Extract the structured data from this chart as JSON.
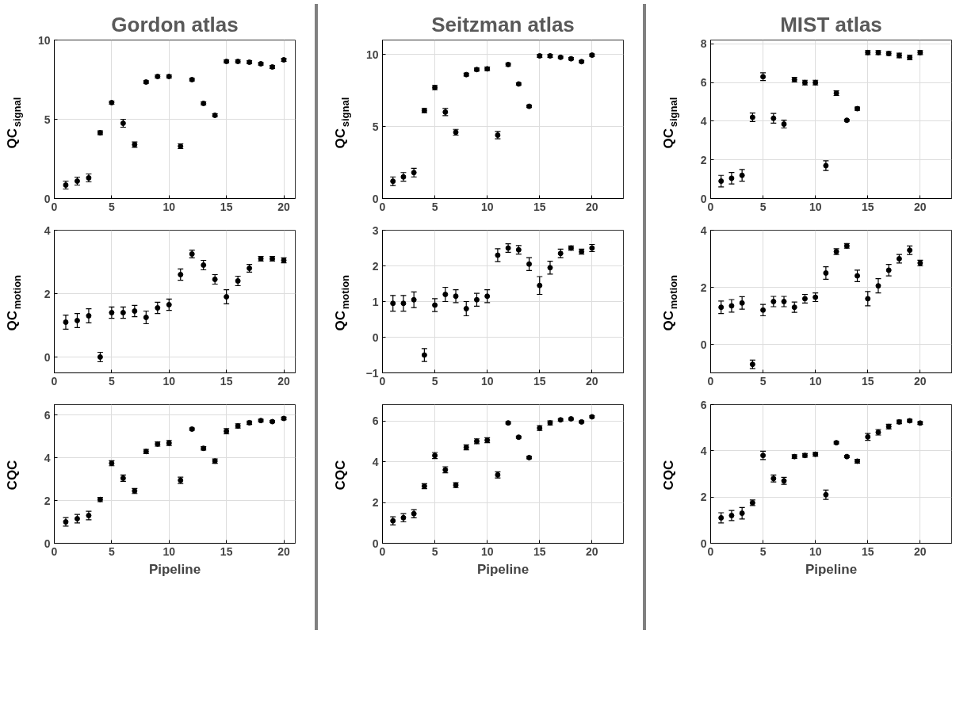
{
  "chart_data": [
    {
      "type": "scatter",
      "title": "Gordon atlas",
      "ylabel": "QC$_{signal}$",
      "x": [
        1,
        2,
        3,
        4,
        5,
        6,
        7,
        8,
        9,
        10,
        11,
        12,
        13,
        14,
        15,
        16,
        17,
        18,
        19,
        20
      ],
      "xlim": [
        0,
        21
      ],
      "xticks": [
        0,
        5,
        10,
        15,
        20
      ],
      "ylim": [
        0,
        10
      ],
      "yticks": [
        0,
        5,
        10
      ],
      "grid": true,
      "marker": "circle",
      "series": [
        {
          "color": "#000000",
          "values": [
            0.85,
            1.1,
            1.3,
            4.15,
            6.05,
            4.75,
            3.4,
            7.35,
            7.7,
            7.7,
            3.3,
            7.5,
            6.0,
            5.25,
            8.65,
            8.65,
            8.6,
            8.5,
            8.3,
            8.75
          ],
          "errors": [
            0.25,
            0.25,
            0.25,
            0.12,
            0.1,
            0.25,
            0.17,
            0.08,
            0.1,
            0.1,
            0.15,
            0.08,
            0.1,
            0.1,
            0.1,
            0.1,
            0.1,
            0.08,
            0.1,
            0.1
          ]
        }
      ]
    },
    {
      "type": "scatter",
      "title": "Seitzman atlas",
      "ylabel": "QC$_{signal}$",
      "x": [
        1,
        2,
        3,
        4,
        5,
        6,
        7,
        8,
        9,
        10,
        11,
        12,
        13,
        14,
        15,
        16,
        17,
        18,
        19,
        20
      ],
      "xlim": [
        0,
        23
      ],
      "xticks": [
        0,
        5,
        10,
        15,
        20
      ],
      "ylim": [
        0,
        11
      ],
      "yticks": [
        0,
        5,
        10
      ],
      "grid": true,
      "marker": "circle",
      "series": [
        {
          "color": "#000000",
          "values": [
            1.2,
            1.5,
            1.8,
            6.1,
            7.7,
            6.0,
            4.6,
            8.6,
            8.95,
            9.0,
            4.4,
            9.3,
            7.95,
            6.4,
            9.9,
            9.9,
            9.8,
            9.7,
            9.5,
            9.95
          ],
          "errors": [
            0.3,
            0.3,
            0.3,
            0.15,
            0.15,
            0.25,
            0.2,
            0.1,
            0.1,
            0.12,
            0.25,
            0.1,
            0.08,
            0.08,
            0.1,
            0.1,
            0.08,
            0.08,
            0.08,
            0.08
          ]
        }
      ]
    },
    {
      "type": "scatter",
      "title": "MIST atlas",
      "ylabel": "QC$_{signal}$",
      "x": [
        1,
        2,
        3,
        4,
        5,
        6,
        7,
        8,
        9,
        10,
        11,
        12,
        13,
        14,
        15,
        16,
        17,
        18,
        19,
        20
      ],
      "xlim": [
        0,
        23
      ],
      "xticks": [
        0,
        5,
        10,
        15,
        20
      ],
      "ylim": [
        0,
        8.2
      ],
      "yticks": [
        0,
        2,
        4,
        6,
        8
      ],
      "grid": true,
      "marker": "circle",
      "series": [
        {
          "color": "#000000",
          "values": [
            0.9,
            1.05,
            1.2,
            4.2,
            6.3,
            4.15,
            3.85,
            6.15,
            6.0,
            6.0,
            1.7,
            5.45,
            4.05,
            4.65,
            7.55,
            7.55,
            7.5,
            7.4,
            7.3,
            7.55
          ],
          "errors": [
            0.3,
            0.3,
            0.3,
            0.22,
            0.2,
            0.25,
            0.2,
            0.12,
            0.12,
            0.12,
            0.25,
            0.12,
            0.05,
            0.08,
            0.1,
            0.1,
            0.1,
            0.12,
            0.12,
            0.1
          ]
        }
      ]
    },
    {
      "type": "scatter",
      "ylabel": "QC$_{motion}$",
      "x": [
        1,
        2,
        3,
        4,
        5,
        6,
        7,
        8,
        9,
        10,
        11,
        12,
        13,
        14,
        15,
        16,
        17,
        18,
        19,
        20
      ],
      "xlim": [
        0,
        21
      ],
      "xticks": [
        0,
        5,
        10,
        15,
        20
      ],
      "ylim": [
        -0.5,
        4
      ],
      "yticks": [
        0,
        2,
        4
      ],
      "grid": true,
      "marker": "circle",
      "series": [
        {
          "color": "#000000",
          "values": [
            1.1,
            1.15,
            1.3,
            0.0,
            1.4,
            1.4,
            1.45,
            1.25,
            1.55,
            1.65,
            2.6,
            3.25,
            2.9,
            2.45,
            1.9,
            2.4,
            2.8,
            3.1,
            3.1,
            3.05
          ],
          "errors": [
            0.22,
            0.22,
            0.22,
            0.15,
            0.18,
            0.18,
            0.18,
            0.2,
            0.18,
            0.18,
            0.18,
            0.12,
            0.15,
            0.15,
            0.22,
            0.15,
            0.12,
            0.07,
            0.07,
            0.08
          ]
        }
      ]
    },
    {
      "type": "scatter",
      "ylabel": "QC$_{motion}$",
      "x": [
        1,
        2,
        3,
        4,
        5,
        6,
        7,
        8,
        9,
        10,
        11,
        12,
        13,
        14,
        15,
        16,
        17,
        18,
        19,
        20
      ],
      "xlim": [
        0,
        23
      ],
      "xticks": [
        0,
        5,
        10,
        15,
        20
      ],
      "ylim": [
        -1,
        3
      ],
      "yticks": [
        -1,
        0,
        1,
        2,
        3
      ],
      "grid": true,
      "marker": "circle",
      "series": [
        {
          "color": "#000000",
          "values": [
            0.95,
            0.95,
            1.05,
            -0.5,
            0.9,
            1.2,
            1.15,
            0.8,
            1.05,
            1.15,
            2.3,
            2.5,
            2.45,
            2.05,
            1.45,
            1.95,
            2.35,
            2.5,
            2.4,
            2.5
          ],
          "errors": [
            0.22,
            0.22,
            0.22,
            0.18,
            0.18,
            0.2,
            0.18,
            0.2,
            0.18,
            0.18,
            0.18,
            0.12,
            0.12,
            0.18,
            0.25,
            0.18,
            0.12,
            0.06,
            0.07,
            0.1
          ]
        }
      ]
    },
    {
      "type": "scatter",
      "ylabel": "QC$_{motion}$",
      "x": [
        1,
        2,
        3,
        4,
        5,
        6,
        7,
        8,
        9,
        10,
        11,
        12,
        13,
        14,
        15,
        16,
        17,
        18,
        19,
        20
      ],
      "xlim": [
        0,
        23
      ],
      "xticks": [
        0,
        5,
        10,
        15,
        20
      ],
      "ylim": [
        -1,
        4
      ],
      "yticks": [
        0,
        2,
        4
      ],
      "grid": true,
      "marker": "circle",
      "series": [
        {
          "color": "#000000",
          "values": [
            1.3,
            1.35,
            1.45,
            -0.7,
            1.2,
            1.5,
            1.5,
            1.3,
            1.6,
            1.65,
            2.5,
            3.25,
            3.45,
            2.4,
            1.6,
            2.05,
            2.6,
            3.0,
            3.3,
            2.85
          ],
          "errors": [
            0.22,
            0.22,
            0.22,
            0.15,
            0.2,
            0.18,
            0.18,
            0.18,
            0.15,
            0.15,
            0.22,
            0.1,
            0.08,
            0.2,
            0.25,
            0.25,
            0.2,
            0.15,
            0.15,
            0.1
          ]
        }
      ]
    },
    {
      "type": "scatter",
      "ylabel": "CQC",
      "xlabel": "Pipeline",
      "x": [
        1,
        2,
        3,
        4,
        5,
        6,
        7,
        8,
        9,
        10,
        11,
        12,
        13,
        14,
        15,
        16,
        17,
        18,
        19,
        20
      ],
      "xlim": [
        0,
        21
      ],
      "xticks": [
        0,
        5,
        10,
        15,
        20
      ],
      "ylim": [
        0,
        6.5
      ],
      "yticks": [
        0,
        2,
        4,
        6
      ],
      "grid": true,
      "marker": "circle",
      "series": [
        {
          "color": "#000000",
          "values": [
            1.0,
            1.15,
            1.3,
            2.05,
            3.75,
            3.05,
            2.45,
            4.3,
            4.65,
            4.7,
            2.95,
            5.35,
            4.45,
            3.85,
            5.25,
            5.5,
            5.65,
            5.75,
            5.7,
            5.85
          ],
          "errors": [
            0.2,
            0.2,
            0.2,
            0.1,
            0.12,
            0.15,
            0.12,
            0.1,
            0.1,
            0.12,
            0.15,
            0.05,
            0.08,
            0.1,
            0.12,
            0.1,
            0.08,
            0.06,
            0.05,
            0.06
          ]
        }
      ]
    },
    {
      "type": "scatter",
      "ylabel": "CQC",
      "xlabel": "Pipeline",
      "x": [
        1,
        2,
        3,
        4,
        5,
        6,
        7,
        8,
        9,
        10,
        11,
        12,
        13,
        14,
        15,
        16,
        17,
        18,
        19,
        20
      ],
      "xlim": [
        0,
        23
      ],
      "xticks": [
        0,
        5,
        10,
        15,
        20
      ],
      "ylim": [
        0,
        6.8
      ],
      "yticks": [
        0,
        2,
        4,
        6
      ],
      "grid": true,
      "marker": "circle",
      "series": [
        {
          "color": "#000000",
          "values": [
            1.1,
            1.25,
            1.45,
            2.8,
            4.3,
            3.6,
            2.85,
            4.7,
            5.0,
            5.05,
            3.35,
            5.9,
            5.2,
            4.2,
            5.65,
            5.9,
            6.05,
            6.1,
            5.95,
            6.2
          ],
          "errors": [
            0.2,
            0.2,
            0.2,
            0.12,
            0.15,
            0.15,
            0.12,
            0.12,
            0.12,
            0.12,
            0.15,
            0.05,
            0.05,
            0.06,
            0.12,
            0.1,
            0.06,
            0.05,
            0.05,
            0.05
          ]
        }
      ]
    },
    {
      "type": "scatter",
      "ylabel": "CQC",
      "xlabel": "Pipeline",
      "x": [
        1,
        2,
        3,
        4,
        5,
        6,
        7,
        8,
        9,
        10,
        11,
        12,
        13,
        14,
        15,
        16,
        17,
        18,
        19,
        20
      ],
      "xlim": [
        0,
        23
      ],
      "xticks": [
        0,
        5,
        10,
        15,
        20
      ],
      "ylim": [
        0,
        6
      ],
      "yticks": [
        0,
        2,
        4,
        6
      ],
      "grid": true,
      "marker": "circle",
      "series": [
        {
          "color": "#000000",
          "values": [
            1.1,
            1.2,
            1.3,
            1.75,
            3.8,
            2.8,
            2.7,
            3.75,
            3.8,
            3.85,
            2.1,
            4.35,
            3.75,
            3.55,
            4.6,
            4.8,
            5.05,
            5.25,
            5.3,
            5.2
          ],
          "errors": [
            0.22,
            0.22,
            0.25,
            0.12,
            0.18,
            0.15,
            0.15,
            0.08,
            0.08,
            0.08,
            0.2,
            0.05,
            0.04,
            0.08,
            0.15,
            0.12,
            0.1,
            0.08,
            0.06,
            0.06
          ]
        }
      ]
    }
  ]
}
